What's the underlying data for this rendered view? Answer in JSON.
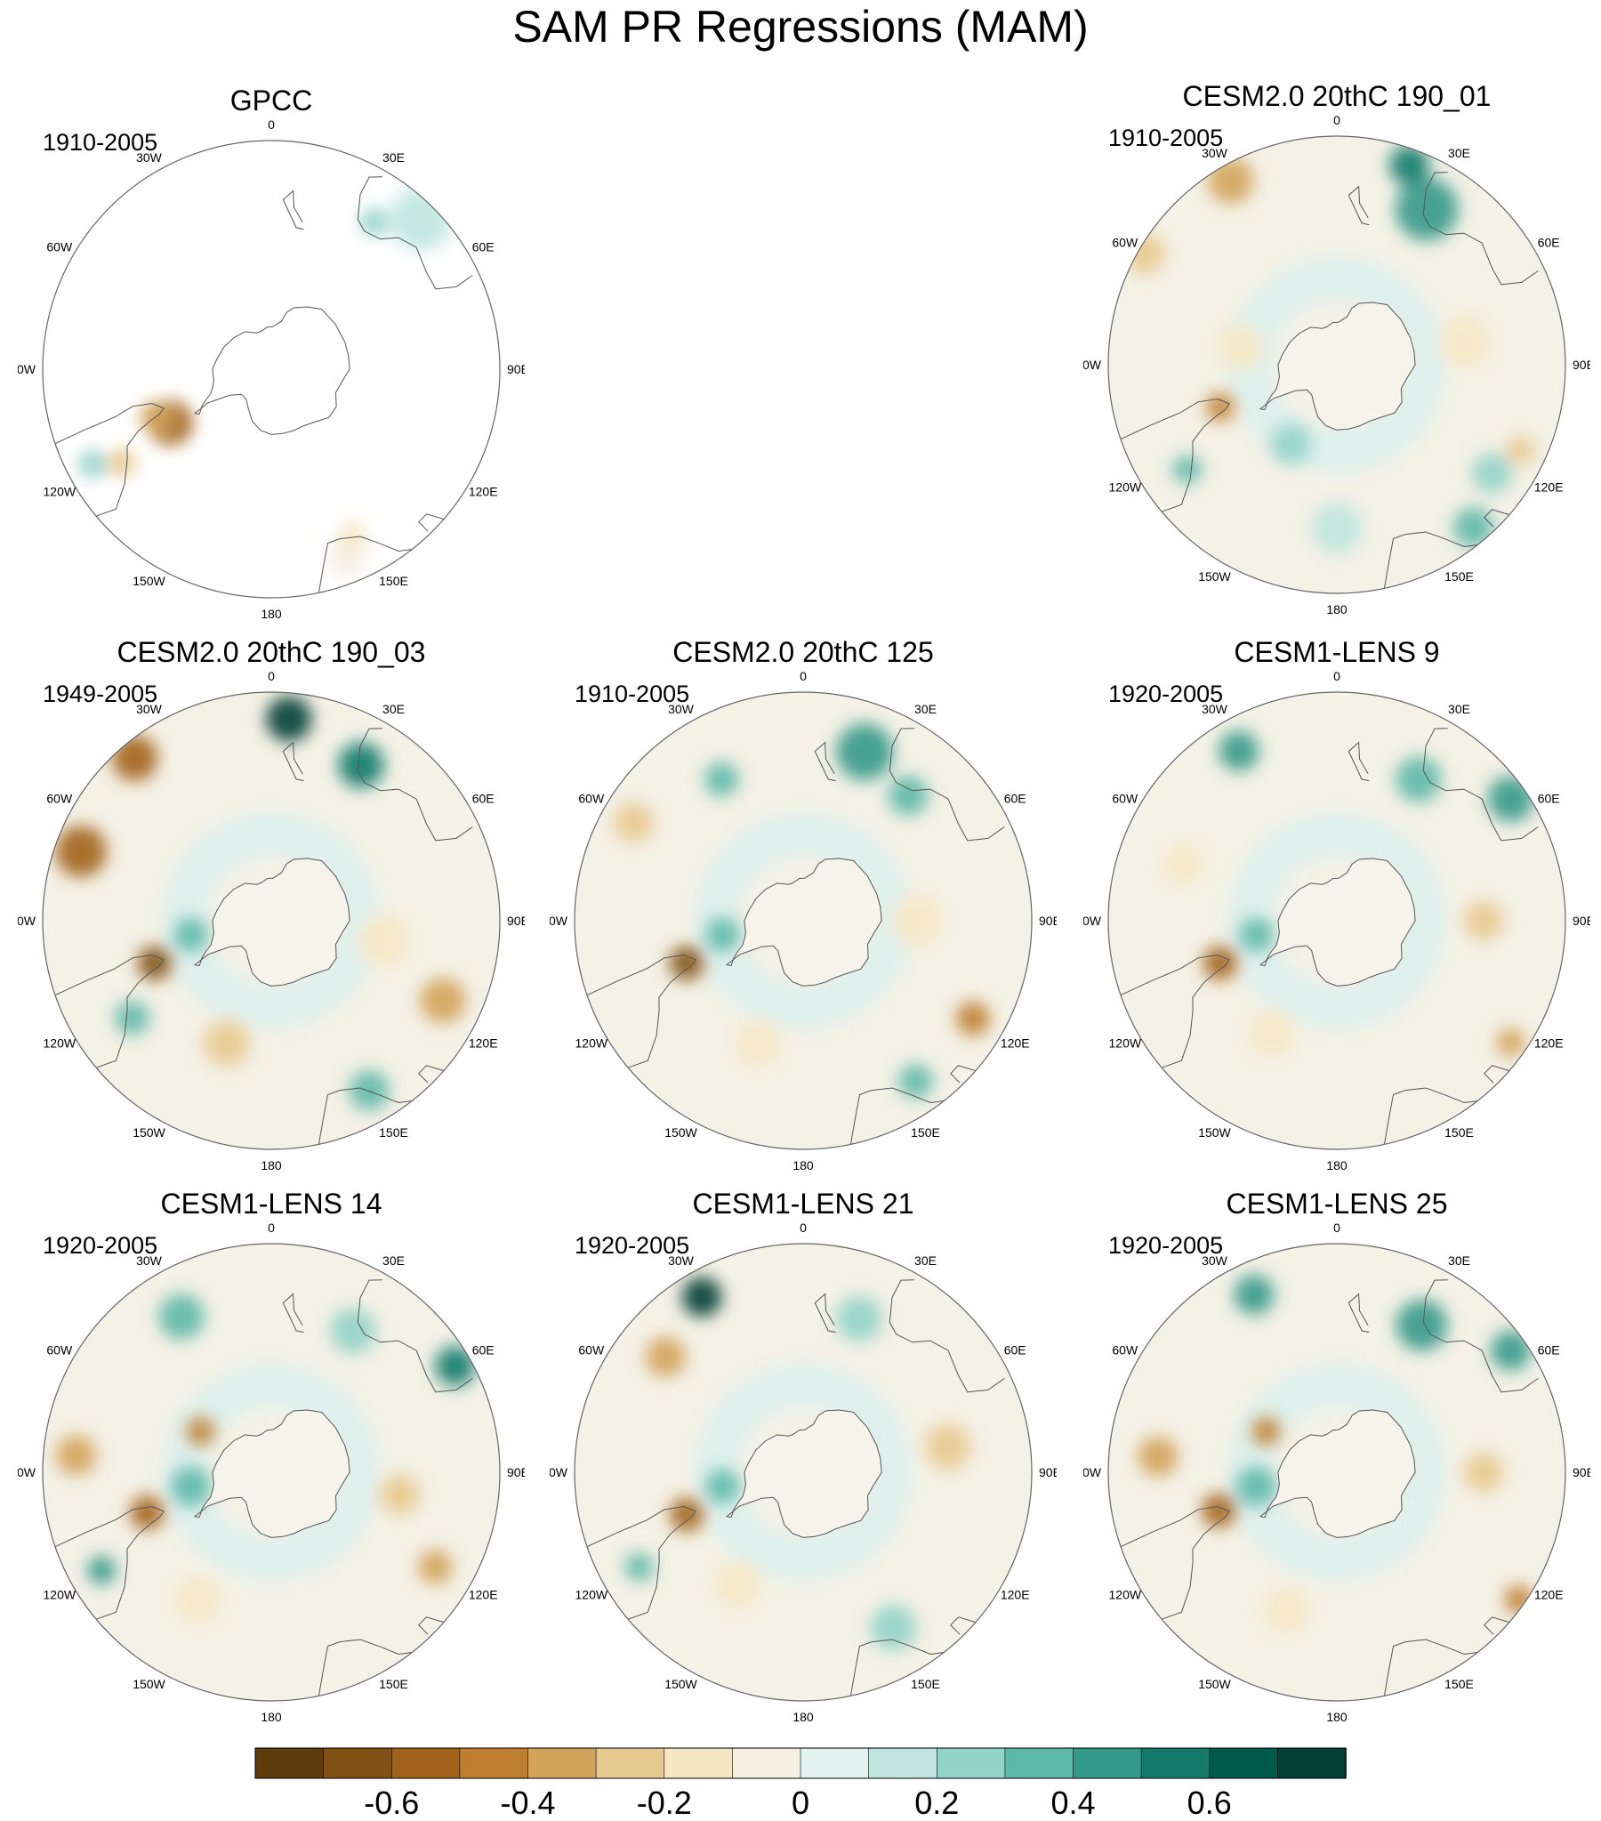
{
  "title": "SAM PR Regressions (MAM)",
  "lon_labels": [
    "0",
    "30E",
    "60E",
    "90E",
    "120E",
    "150E",
    "180",
    "150W",
    "120W",
    "90W",
    "60W",
    "30W"
  ],
  "panels": [
    {
      "title": "GPCC",
      "period": "1910-2005",
      "ocean_data": false,
      "blobs": [
        {
          "lon": -62,
          "lat": -55,
          "r": 16,
          "v": -0.6
        },
        {
          "lon": -67,
          "lat": -52,
          "r": 12,
          "v": -0.4
        },
        {
          "lon": -58,
          "lat": -36,
          "r": 10,
          "v": -0.3
        },
        {
          "lon": -62,
          "lat": -28,
          "r": 10,
          "v": 0.2
        },
        {
          "lon": 22,
          "lat": -28,
          "r": 14,
          "v": -0.1
        },
        {
          "lon": 26,
          "lat": -33,
          "r": 10,
          "v": -0.2
        },
        {
          "lon": 135,
          "lat": -25,
          "r": 22,
          "v": 0.1
        },
        {
          "lon": 145,
          "lat": -35,
          "r": 10,
          "v": 0.2
        }
      ]
    },
    {
      "title": "CESM2.0 20thC 190_01",
      "period": "1910-2005",
      "ocean_data": true,
      "blobs": [
        {
          "lon": -150,
          "lat": -25,
          "r": 16,
          "v": -0.4
        },
        {
          "lon": -120,
          "lat": -22,
          "r": 14,
          "v": -0.3
        },
        {
          "lon": -70,
          "lat": -52,
          "r": 10,
          "v": -0.5
        },
        {
          "lon": -55,
          "lat": -34,
          "r": 10,
          "v": 0.3
        },
        {
          "lon": 40,
          "lat": -25,
          "r": 14,
          "v": 0.35
        },
        {
          "lon": 55,
          "lat": -32,
          "r": 14,
          "v": 0.25
        },
        {
          "lon": 65,
          "lat": -28,
          "r": 10,
          "v": -0.3
        },
        {
          "lon": 150,
          "lat": -35,
          "r": 22,
          "v": 0.45
        },
        {
          "lon": 160,
          "lat": -25,
          "r": 14,
          "v": 0.6
        },
        {
          "lon": 100,
          "lat": -50,
          "r": 18,
          "v": -0.2
        },
        {
          "lon": 0,
          "lat": -40,
          "r": 18,
          "v": 0.15
        },
        {
          "lon": -100,
          "lat": -60,
          "r": 16,
          "v": -0.15
        },
        {
          "lon": -30,
          "lat": -62,
          "r": 14,
          "v": 0.2
        }
      ]
    },
    {
      "title": "CESM2.0 20thC 190_03",
      "period": "1949-2005",
      "ocean_data": true,
      "blobs": [
        {
          "lon": -110,
          "lat": -28,
          "r": 18,
          "v": -0.6
        },
        {
          "lon": -140,
          "lat": -25,
          "r": 16,
          "v": -0.55
        },
        {
          "lon": -70,
          "lat": -52,
          "r": 12,
          "v": -0.65
        },
        {
          "lon": 65,
          "lat": -32,
          "r": 16,
          "v": -0.4
        },
        {
          "lon": 175,
          "lat": -28,
          "r": 16,
          "v": 0.7
        },
        {
          "lon": 150,
          "lat": -35,
          "r": 16,
          "v": 0.5
        },
        {
          "lon": 30,
          "lat": -30,
          "r": 14,
          "v": 0.35
        },
        {
          "lon": -55,
          "lat": -38,
          "r": 12,
          "v": 0.3
        },
        {
          "lon": -20,
          "lat": -50,
          "r": 16,
          "v": -0.25
        },
        {
          "lon": 80,
          "lat": -55,
          "r": 18,
          "v": -0.2
        },
        {
          "lon": -80,
          "lat": -65,
          "r": 12,
          "v": 0.3
        }
      ]
    },
    {
      "title": "CESM2.0 20thC 125",
      "period": "1910-2005",
      "ocean_data": true,
      "blobs": [
        {
          "lon": -70,
          "lat": -52,
          "r": 12,
          "v": -0.65
        },
        {
          "lon": 60,
          "lat": -30,
          "r": 12,
          "v": -0.5
        },
        {
          "lon": 160,
          "lat": -35,
          "r": 20,
          "v": 0.4
        },
        {
          "lon": 140,
          "lat": -40,
          "r": 14,
          "v": 0.3
        },
        {
          "lon": 35,
          "lat": -30,
          "r": 12,
          "v": 0.35
        },
        {
          "lon": -120,
          "lat": -30,
          "r": 14,
          "v": -0.3
        },
        {
          "lon": -150,
          "lat": -40,
          "r": 12,
          "v": 0.3
        },
        {
          "lon": -80,
          "lat": -65,
          "r": 12,
          "v": 0.3
        },
        {
          "lon": 90,
          "lat": -55,
          "r": 18,
          "v": -0.2
        },
        {
          "lon": -20,
          "lat": -50,
          "r": 16,
          "v": -0.15
        }
      ]
    },
    {
      "title": "CESM1-LENS 9",
      "period": "1920-2005",
      "ocean_data": true,
      "blobs": [
        {
          "lon": -70,
          "lat": -52,
          "r": 12,
          "v": -0.55
        },
        {
          "lon": 125,
          "lat": -25,
          "r": 16,
          "v": 0.4
        },
        {
          "lon": 150,
          "lat": -40,
          "r": 16,
          "v": 0.3
        },
        {
          "lon": -150,
          "lat": -30,
          "r": 14,
          "v": 0.45
        },
        {
          "lon": 55,
          "lat": -25,
          "r": 10,
          "v": -0.4
        },
        {
          "lon": 90,
          "lat": -45,
          "r": 14,
          "v": -0.3
        },
        {
          "lon": -110,
          "lat": -40,
          "r": 14,
          "v": -0.2
        },
        {
          "lon": -80,
          "lat": -65,
          "r": 12,
          "v": 0.3
        },
        {
          "lon": -30,
          "lat": -50,
          "r": 16,
          "v": -0.15
        }
      ]
    },
    {
      "title": "CESM1-LENS 14",
      "period": "1920-2005",
      "ocean_data": true,
      "blobs": [
        {
          "lon": -72,
          "lat": -50,
          "r": 12,
          "v": -0.6
        },
        {
          "lon": -60,
          "lat": -30,
          "r": 10,
          "v": 0.45
        },
        {
          "lon": -95,
          "lat": -30,
          "r": 14,
          "v": -0.4
        },
        {
          "lon": 120,
          "lat": -25,
          "r": 14,
          "v": 0.5
        },
        {
          "lon": 150,
          "lat": -40,
          "r": 16,
          "v": 0.25
        },
        {
          "lon": -150,
          "lat": -35,
          "r": 16,
          "v": 0.3
        },
        {
          "lon": -120,
          "lat": -65,
          "r": 10,
          "v": -0.5
        },
        {
          "lon": -80,
          "lat": -65,
          "r": 14,
          "v": 0.35
        },
        {
          "lon": 60,
          "lat": -32,
          "r": 12,
          "v": -0.35
        },
        {
          "lon": 80,
          "lat": -50,
          "r": 14,
          "v": -0.3
        },
        {
          "lon": -30,
          "lat": -45,
          "r": 16,
          "v": -0.2
        }
      ]
    },
    {
      "title": "CESM1-LENS 21",
      "period": "1920-2005",
      "ocean_data": true,
      "blobs": [
        {
          "lon": -70,
          "lat": -52,
          "r": 12,
          "v": -0.6
        },
        {
          "lon": -150,
          "lat": -28,
          "r": 14,
          "v": 0.7
        },
        {
          "lon": -130,
          "lat": -35,
          "r": 14,
          "v": -0.35
        },
        {
          "lon": -60,
          "lat": -32,
          "r": 10,
          "v": 0.35
        },
        {
          "lon": -80,
          "lat": -65,
          "r": 12,
          "v": 0.3
        },
        {
          "lon": 30,
          "lat": -35,
          "r": 16,
          "v": 0.25
        },
        {
          "lon": 100,
          "lat": -45,
          "r": 16,
          "v": -0.25
        },
        {
          "lon": 160,
          "lat": -40,
          "r": 16,
          "v": 0.2
        },
        {
          "lon": -30,
          "lat": -50,
          "r": 16,
          "v": -0.2
        }
      ]
    },
    {
      "title": "CESM1-LENS 25",
      "period": "1920-2005",
      "ocean_data": true,
      "blobs": [
        {
          "lon": -72,
          "lat": -52,
          "r": 12,
          "v": -0.6
        },
        {
          "lon": -95,
          "lat": -35,
          "r": 14,
          "v": -0.35
        },
        {
          "lon": 55,
          "lat": -22,
          "r": 10,
          "v": -0.45
        },
        {
          "lon": 125,
          "lat": -25,
          "r": 14,
          "v": 0.45
        },
        {
          "lon": 150,
          "lat": -38,
          "r": 18,
          "v": 0.45
        },
        {
          "lon": -155,
          "lat": -30,
          "r": 14,
          "v": 0.45
        },
        {
          "lon": -120,
          "lat": -65,
          "r": 10,
          "v": -0.45
        },
        {
          "lon": -80,
          "lat": -65,
          "r": 14,
          "v": 0.35
        },
        {
          "lon": 90,
          "lat": -45,
          "r": 14,
          "v": -0.3
        },
        {
          "lon": -20,
          "lat": -45,
          "r": 16,
          "v": -0.2
        }
      ]
    }
  ],
  "colorbar": {
    "colors": [
      "#5e3c0c",
      "#7f4f13",
      "#a1621b",
      "#bf7f30",
      "#d2a35a",
      "#e8c98f",
      "#f6e7c3",
      "#f5f0e4",
      "#e3f1ef",
      "#bfe5de",
      "#92d3c8",
      "#5cb8a8",
      "#33998a",
      "#137a6c",
      "#005a4c",
      "#013e33"
    ],
    "ticks": [
      {
        "label": "-0.6",
        "value": -0.6
      },
      {
        "label": "-0.4",
        "value": -0.4
      },
      {
        "label": "-0.2",
        "value": -0.2
      },
      {
        "label": "0",
        "value": 0
      },
      {
        "label": "0.2",
        "value": 0.2
      },
      {
        "label": "0.4",
        "value": 0.4
      },
      {
        "label": "0.6",
        "value": 0.6
      }
    ],
    "min": -0.8,
    "max": 0.8
  }
}
